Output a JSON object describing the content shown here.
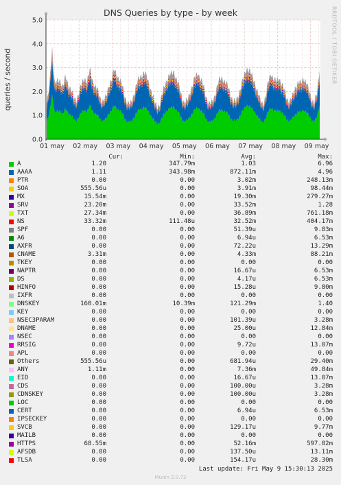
{
  "chart_data": {
    "type": "area",
    "title": "DNS Queries by type - by week",
    "ylabel": "queries / second",
    "ylim": [
      0,
      5
    ],
    "yticks": [
      "0.0",
      "1.0",
      "2.0",
      "3.0",
      "4.0",
      "5.0"
    ],
    "xticks": [
      "01 may",
      "02 may",
      "03 may",
      "04 may",
      "05 may",
      "06 may",
      "07 may",
      "08 may",
      "09 may"
    ],
    "stacked": true,
    "grid": true,
    "series": [
      {
        "name": "A",
        "color": "#00cc00"
      },
      {
        "name": "AAAA",
        "color": "#0066b3"
      },
      {
        "name": "PTR",
        "color": "#ff8000"
      },
      {
        "name": "SOA",
        "color": "#ffcc00"
      },
      {
        "name": "MX",
        "color": "#330099"
      },
      {
        "name": "SRV",
        "color": "#990099"
      },
      {
        "name": "TXT",
        "color": "#ccff00"
      },
      {
        "name": "NS",
        "color": "#ff0000"
      },
      {
        "name": "DNSKEY",
        "color": "#a0a0a0"
      }
    ],
    "profile": [
      1.45,
      2.2,
      3.9,
      2.3,
      2.4,
      2.5,
      2.2,
      2.6,
      2.3,
      2.1,
      1.7,
      1.65,
      2.0,
      2.3,
      2.6,
      2.4,
      2.9,
      2.5,
      2.2,
      2.0,
      1.7,
      1.6,
      1.75,
      2.3,
      2.5,
      2.9,
      2.7,
      2.5,
      2.2,
      1.8,
      1.5,
      1.45,
      1.8,
      2.2,
      2.5,
      2.7,
      2.8,
      2.6,
      2.3,
      1.9,
      1.5,
      1.4,
      1.5,
      2.0,
      2.4,
      2.6,
      2.7,
      2.9,
      2.5,
      2.2,
      1.8,
      1.5,
      1.6,
      2.0,
      2.3,
      2.6,
      2.8,
      2.5,
      2.2,
      1.8,
      1.5,
      1.5,
      1.8,
      2.2,
      2.5,
      2.6,
      2.4,
      2.2,
      1.9,
      1.6,
      1.55,
      1.9,
      2.3,
      2.6,
      3.0,
      2.9,
      2.6,
      2.4,
      2.0,
      1.6,
      1.5,
      1.8,
      2.4,
      2.8,
      2.5,
      2.4,
      2.6,
      2.3,
      2.0,
      1.7,
      1.6,
      1.8,
      2.2,
      2.4,
      2.3,
      2.6,
      2.4,
      2.0,
      1.7,
      1.55,
      1.9,
      3.0
    ]
  },
  "legend": {
    "headers": {
      "cur": "Cur:",
      "min": "Min:",
      "avg": "Avg:",
      "max": "Max:"
    },
    "rows": [
      {
        "name": "A",
        "color": "#00cc00",
        "cur": "1.20",
        "min": "347.79m",
        "avg": "1.03",
        "max": "6.96"
      },
      {
        "name": "AAAA",
        "color": "#0066b3",
        "cur": "1.11",
        "min": "343.98m",
        "avg": "872.11m",
        "max": "4.96"
      },
      {
        "name": "PTR",
        "color": "#ff8000",
        "cur": "0.00",
        "min": "0.00",
        "avg": "3.02m",
        "max": "248.13m"
      },
      {
        "name": "SOA",
        "color": "#ffcc00",
        "cur": "555.56u",
        "min": "0.00",
        "avg": "3.91m",
        "max": "98.44m"
      },
      {
        "name": "MX",
        "color": "#330099",
        "cur": "15.54m",
        "min": "0.00",
        "avg": "19.30m",
        "max": "279.27m"
      },
      {
        "name": "SRV",
        "color": "#990099",
        "cur": "23.20m",
        "min": "0.00",
        "avg": "33.52m",
        "max": "1.28"
      },
      {
        "name": "TXT",
        "color": "#ccff00",
        "cur": "27.34m",
        "min": "0.00",
        "avg": "36.89m",
        "max": "761.18m"
      },
      {
        "name": "NS",
        "color": "#ff0000",
        "cur": "33.32m",
        "min": "111.48u",
        "avg": "32.52m",
        "max": "404.17m"
      },
      {
        "name": "SPF",
        "color": "#808080",
        "cur": "0.00",
        "min": "0.00",
        "avg": "51.39u",
        "max": "9.83m"
      },
      {
        "name": "A6",
        "color": "#008f00",
        "cur": "0.00",
        "min": "0.00",
        "avg": "6.94u",
        "max": "6.53m"
      },
      {
        "name": "AXFR",
        "color": "#00487d",
        "cur": "0.00",
        "min": "0.00",
        "avg": "72.22u",
        "max": "13.29m"
      },
      {
        "name": "CNAME",
        "color": "#b35a00",
        "cur": "3.31m",
        "min": "0.00",
        "avg": "4.33m",
        "max": "88.21m"
      },
      {
        "name": "TKEY",
        "color": "#b38f00",
        "cur": "0.00",
        "min": "0.00",
        "avg": "0.00",
        "max": "0.00"
      },
      {
        "name": "NAPTR",
        "color": "#6b006b",
        "cur": "0.00",
        "min": "0.00",
        "avg": "16.67u",
        "max": "6.53m"
      },
      {
        "name": "DS",
        "color": "#8fb300",
        "cur": "0.00",
        "min": "0.00",
        "avg": "4.17u",
        "max": "6.53m"
      },
      {
        "name": "HINFO",
        "color": "#b30000",
        "cur": "0.00",
        "min": "0.00",
        "avg": "15.28u",
        "max": "9.80m"
      },
      {
        "name": "IXFR",
        "color": "#bebebe",
        "cur": "0.00",
        "min": "0.00",
        "avg": "0.00",
        "max": "0.00"
      },
      {
        "name": "DNSKEY",
        "color": "#80ff80",
        "cur": "160.01m",
        "min": "10.39m",
        "avg": "121.29m",
        "max": "1.40"
      },
      {
        "name": "KEY",
        "color": "#80c9ff",
        "cur": "0.00",
        "min": "0.00",
        "avg": "0.00",
        "max": "0.00"
      },
      {
        "name": "NSEC3PARAM",
        "color": "#ffc080",
        "cur": "0.00",
        "min": "0.00",
        "avg": "101.39u",
        "max": "3.28m"
      },
      {
        "name": "DNAME",
        "color": "#ffe680",
        "cur": "0.00",
        "min": "0.00",
        "avg": "25.00u",
        "max": "12.84m"
      },
      {
        "name": "NSEC",
        "color": "#aa80ff",
        "cur": "0.00",
        "min": "0.00",
        "avg": "0.00",
        "max": "0.00"
      },
      {
        "name": "RRSIG",
        "color": "#ee00cc",
        "cur": "0.00",
        "min": "0.00",
        "avg": "9.72u",
        "max": "13.07m"
      },
      {
        "name": "APL",
        "color": "#ff8080",
        "cur": "0.00",
        "min": "0.00",
        "avg": "0.00",
        "max": "0.00"
      },
      {
        "name": "Others",
        "color": "#666600",
        "cur": "555.56u",
        "min": "0.00",
        "avg": "681.94u",
        "max": "29.40m"
      },
      {
        "name": "ANY",
        "color": "#ffbfff",
        "cur": "1.11m",
        "min": "0.00",
        "avg": "7.36m",
        "max": "49.84m"
      },
      {
        "name": "EID",
        "color": "#00ffcc",
        "cur": "0.00",
        "min": "0.00",
        "avg": "16.67u",
        "max": "13.07m"
      },
      {
        "name": "CDS",
        "color": "#cc6699",
        "cur": "0.00",
        "min": "0.00",
        "avg": "100.00u",
        "max": "3.28m"
      },
      {
        "name": "CDNSKEY",
        "color": "#999900",
        "cur": "0.00",
        "min": "0.00",
        "avg": "100.00u",
        "max": "3.28m"
      },
      {
        "name": "LOC",
        "color": "#00cc00",
        "cur": "0.00",
        "min": "0.00",
        "avg": "0.00",
        "max": "0.00"
      },
      {
        "name": "CERT",
        "color": "#0066b3",
        "cur": "0.00",
        "min": "0.00",
        "avg": "6.94u",
        "max": "6.53m"
      },
      {
        "name": "IPSECKEY",
        "color": "#ff8000",
        "cur": "0.00",
        "min": "0.00",
        "avg": "0.00",
        "max": "0.00"
      },
      {
        "name": "SVCB",
        "color": "#ffcc00",
        "cur": "0.00",
        "min": "0.00",
        "avg": "129.17u",
        "max": "9.77m"
      },
      {
        "name": "MAILB",
        "color": "#330099",
        "cur": "0.00",
        "min": "0.00",
        "avg": "0.00",
        "max": "0.00"
      },
      {
        "name": "HTTPS",
        "color": "#990099",
        "cur": "68.55m",
        "min": "0.00",
        "avg": "52.16m",
        "max": "597.82m"
      },
      {
        "name": "AFSDB",
        "color": "#ccff00",
        "cur": "0.00",
        "min": "0.00",
        "avg": "137.50u",
        "max": "13.11m"
      },
      {
        "name": "TLSA",
        "color": "#ff0000",
        "cur": "0.00",
        "min": "0.00",
        "avg": "154.17u",
        "max": "28.30m"
      }
    ]
  },
  "footer": {
    "last_update": "Last update: Fri May  9 15:30:13 2025",
    "generator": "Munin 2.0.73"
  },
  "watermark": "RRDTOOL / TOBI OETIKER"
}
